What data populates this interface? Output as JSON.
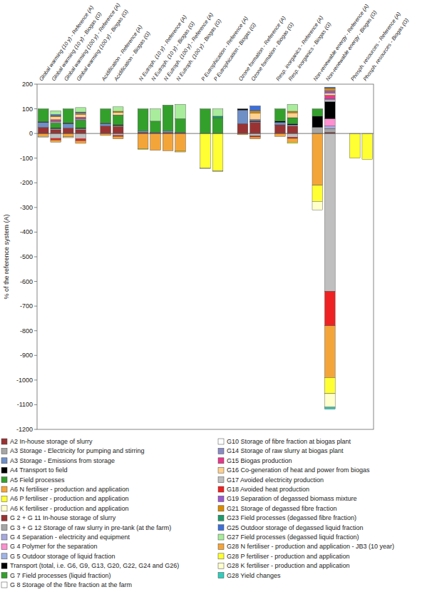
{
  "chart_data": {
    "type": "bar",
    "stacked": true,
    "grid": false,
    "legend": "bottom",
    "y_label": "% of the reference system (A)",
    "ylim": [
      -1200,
      200
    ],
    "yticks": [
      200,
      100,
      0,
      -100,
      -200,
      -300,
      -400,
      -500,
      -600,
      -700,
      -800,
      -900,
      -1000,
      -1100,
      -1200
    ],
    "categories": [
      "Global warming (10 y) - Reference (A)",
      "Global warming (10 y) - Biogas (G)",
      "Global warming (100 y) - Reference (A)",
      "Global warming (100 y) - Biogas (G)",
      null,
      "Acidification - Reference (A)",
      "Acidification - Biogas (G)",
      null,
      "N Eutroph. (10 y) - Reference (A)",
      "N Eutroph. (10 y) - Biogas (G)",
      "N Eutroph. (100 y) - Reference (A)",
      "N Eutroph. (100 y) - Biogas (G)",
      null,
      "P Eutrophication - Reference (A)",
      "P Eutrophication - Biogas (G)",
      null,
      "Ozone formation - Reference (A)",
      "Ozone formation - Biogas (G)",
      null,
      "Resp. inorganics - Reference (A)",
      "Resp. inorganics - Biogas (G)",
      null,
      "Non-renewable energy - Reference (A)",
      "Non-renewable energy - Biogas (G)",
      null,
      "Phosph. resources - Reference (A)",
      "Phosph. resources - Biogas (G)"
    ],
    "series": [
      {
        "name": "A2 In-house storage of slurry",
        "color": "#993333",
        "values": [
          25,
          null,
          22,
          null,
          null,
          30,
          null,
          null,
          5,
          null,
          4,
          null,
          null,
          null,
          null,
          null,
          40,
          null,
          null,
          35,
          null,
          null,
          null,
          null,
          null,
          null,
          null
        ]
      },
      {
        "name": "A3 Storage - Electricity for pumping and stirring",
        "color": "#a6a6a6",
        "values": [
          null,
          null,
          null,
          null,
          null,
          null,
          null,
          null,
          null,
          null,
          null,
          null,
          null,
          null,
          null,
          null,
          null,
          null,
          null,
          null,
          null,
          null,
          25,
          null,
          null,
          null,
          null
        ]
      },
      {
        "name": "A3 Storage - Emissions from storage",
        "color": "#6f8fc7",
        "values": [
          20,
          null,
          18,
          null,
          null,
          10,
          null,
          null,
          5,
          null,
          6,
          null,
          null,
          null,
          null,
          null,
          55,
          null,
          null,
          10,
          null,
          null,
          null,
          null,
          null,
          null,
          null
        ]
      },
      {
        "name": "A4 Transport to field",
        "color": "#000000",
        "values": [
          3,
          null,
          3,
          null,
          null,
          2,
          null,
          null,
          null,
          null,
          null,
          null,
          null,
          null,
          null,
          null,
          5,
          null,
          null,
          5,
          null,
          null,
          45,
          null,
          null,
          null,
          null
        ]
      },
      {
        "name": "A5 Field processes",
        "color": "#33a02c",
        "values": [
          52,
          null,
          57,
          null,
          null,
          58,
          null,
          null,
          90,
          null,
          105,
          null,
          null,
          100,
          null,
          null,
          null,
          null,
          null,
          50,
          null,
          null,
          30,
          null,
          null,
          null,
          null
        ]
      },
      {
        "name": "A6 N fertiliser - production and application",
        "color": "#f4a53a",
        "values": [
          -12,
          null,
          -14,
          null,
          null,
          -8,
          null,
          null,
          -62,
          null,
          -70,
          null,
          null,
          null,
          null,
          null,
          -5,
          null,
          null,
          -12,
          null,
          null,
          -210,
          null,
          null,
          null,
          null
        ]
      },
      {
        "name": "A6 P fertiliser - production and application",
        "color": "#ffff33",
        "values": [
          null,
          null,
          null,
          null,
          null,
          null,
          null,
          null,
          -3,
          null,
          null,
          null,
          null,
          -140,
          null,
          null,
          null,
          null,
          null,
          null,
          null,
          null,
          -65,
          null,
          null,
          -100,
          null
        ]
      },
      {
        "name": "A6 K fertiliser - production and application",
        "color": "#ffffcc",
        "values": [
          -3,
          null,
          -3,
          null,
          null,
          null,
          null,
          null,
          null,
          null,
          null,
          null,
          null,
          -3,
          null,
          null,
          null,
          null,
          null,
          null,
          null,
          null,
          -35,
          null,
          null,
          null,
          null
        ]
      },
      {
        "name": "G 2 + G 11 In-house storage of slurry",
        "color": "#993333",
        "values": [
          null,
          15,
          null,
          15,
          null,
          null,
          28,
          null,
          null,
          3,
          null,
          3,
          null,
          null,
          null,
          null,
          null,
          45,
          null,
          null,
          30,
          null,
          null,
          5,
          null,
          null,
          null
        ]
      },
      {
        "name": "G 3 + G 12 Storage of raw slurry in pre-tank (at the farm)",
        "color": "#a6a6a6",
        "values": [
          null,
          5,
          null,
          5,
          null,
          null,
          4,
          null,
          null,
          null,
          null,
          null,
          null,
          null,
          null,
          null,
          null,
          null,
          null,
          null,
          null,
          null,
          null,
          15,
          null,
          null,
          null
        ]
      },
      {
        "name": "G 4 Separation - electricity and equipment",
        "color": "#a9a9e0",
        "values": [
          null,
          null,
          null,
          null,
          null,
          null,
          null,
          null,
          null,
          null,
          null,
          null,
          null,
          null,
          null,
          null,
          null,
          null,
          null,
          null,
          null,
          null,
          null,
          10,
          null,
          null,
          null
        ]
      },
      {
        "name": "G 4 Polymer for the separation",
        "color": "#ff8fd0",
        "values": [
          null,
          null,
          null,
          null,
          null,
          null,
          null,
          null,
          null,
          null,
          null,
          null,
          null,
          null,
          null,
          null,
          null,
          null,
          null,
          null,
          null,
          null,
          null,
          30,
          null,
          null,
          null
        ]
      },
      {
        "name": "G 5 Outdoor storage of liquid fraction",
        "color": "#9fb3e6",
        "values": [
          null,
          null,
          null,
          null,
          null,
          null,
          null,
          null,
          null,
          2,
          null,
          2,
          null,
          null,
          null,
          null,
          null,
          3,
          null,
          null,
          5,
          null,
          null,
          null,
          null,
          null,
          null
        ]
      },
      {
        "name": "Transport (total, i.e. G6, G9, G13, G20, G22, G24 and G26)",
        "color": "#000000",
        "values": [
          null,
          3,
          null,
          3,
          null,
          null,
          3,
          null,
          null,
          null,
          null,
          null,
          null,
          null,
          null,
          null,
          null,
          4,
          null,
          null,
          4,
          null,
          null,
          70,
          null,
          null,
          null
        ]
      },
      {
        "name": "G 7 Field processes (liquid fraction)",
        "color": "#33a02c",
        "values": [
          null,
          20,
          null,
          30,
          null,
          null,
          40,
          null,
          null,
          45,
          null,
          55,
          null,
          null,
          62,
          null,
          null,
          null,
          null,
          null,
          25,
          null,
          null,
          null,
          null,
          null,
          null
        ]
      },
      {
        "name": "G 8 Storage of the fibre fraction at the farm",
        "color": "#ffffff",
        "values": [
          null,
          2,
          null,
          2,
          null,
          null,
          null,
          null,
          null,
          null,
          null,
          null,
          null,
          null,
          null,
          null,
          null,
          null,
          null,
          null,
          null,
          null,
          null,
          null,
          null,
          null,
          null
        ]
      },
      {
        "name": "G10 Storage of fibre fraction at biogas plant",
        "color": "#ffffff",
        "values": [
          null,
          3,
          null,
          3,
          null,
          null,
          null,
          null,
          null,
          null,
          null,
          null,
          null,
          null,
          null,
          null,
          null,
          null,
          null,
          null,
          null,
          null,
          null,
          5,
          null,
          null,
          null
        ]
      },
      {
        "name": "G14 Storage of raw slurry at biogas plant",
        "color": "#8b8bc4",
        "values": [
          null,
          3,
          null,
          3,
          null,
          null,
          null,
          null,
          null,
          null,
          null,
          null,
          null,
          null,
          null,
          null,
          null,
          5,
          null,
          null,
          null,
          null,
          null,
          5,
          null,
          null,
          null
        ]
      },
      {
        "name": "G15 Biogas production",
        "color": "#e8388a",
        "values": [
          null,
          5,
          null,
          5,
          null,
          null,
          null,
          null,
          null,
          null,
          null,
          null,
          null,
          null,
          null,
          null,
          null,
          null,
          null,
          null,
          null,
          null,
          null,
          15,
          null,
          null,
          null
        ]
      },
      {
        "name": "G16 Co-generation of heat and power from biogas",
        "color": "#ffd28f",
        "values": [
          null,
          12,
          null,
          12,
          null,
          null,
          10,
          null,
          null,
          null,
          null,
          null,
          null,
          null,
          null,
          null,
          null,
          25,
          null,
          null,
          20,
          null,
          null,
          8,
          null,
          null,
          null
        ]
      },
      {
        "name": "G17 Avoided electricity production",
        "color": "#bfbfbf",
        "values": [
          null,
          -20,
          null,
          -22,
          null,
          null,
          -8,
          null,
          null,
          null,
          null,
          null,
          null,
          null,
          null,
          null,
          null,
          -10,
          null,
          null,
          -15,
          null,
          null,
          -640,
          null,
          null,
          null
        ]
      },
      {
        "name": "G18 Avoided heat production",
        "color": "#ee2222",
        "values": [
          null,
          -7,
          null,
          -8,
          null,
          null,
          -4,
          null,
          null,
          null,
          null,
          null,
          null,
          null,
          null,
          null,
          null,
          -4,
          null,
          null,
          -5,
          null,
          null,
          -140,
          null,
          null,
          null
        ]
      },
      {
        "name": "G19 Separation of degassed biomass mixture",
        "color": "#9b59d0",
        "values": [
          null,
          null,
          null,
          null,
          null,
          null,
          null,
          null,
          null,
          null,
          null,
          null,
          null,
          null,
          null,
          null,
          null,
          null,
          null,
          null,
          null,
          null,
          null,
          10,
          null,
          null,
          null
        ]
      },
      {
        "name": "G21 Storage of degassed fibre fraction",
        "color": "#d98c00",
        "values": [
          null,
          4,
          null,
          4,
          null,
          null,
          5,
          null,
          null,
          null,
          null,
          null,
          null,
          null,
          null,
          null,
          null,
          10,
          null,
          null,
          6,
          null,
          null,
          10,
          null,
          null,
          null
        ]
      },
      {
        "name": "G23 Field processes (degassed fibre fraction)",
        "color": "#1f9a6a",
        "values": [
          null,
          null,
          null,
          null,
          null,
          null,
          null,
          null,
          null,
          null,
          null,
          null,
          null,
          null,
          8,
          null,
          null,
          null,
          null,
          null,
          null,
          null,
          null,
          null,
          null,
          null,
          null
        ]
      },
      {
        "name": "G25 Outdoor storage of degassed liquid fraction",
        "color": "#3d6fd6",
        "values": [
          null,
          5,
          null,
          5,
          null,
          null,
          null,
          null,
          null,
          null,
          null,
          null,
          null,
          null,
          null,
          null,
          null,
          20,
          null,
          null,
          null,
          null,
          null,
          5,
          null,
          null,
          null
        ]
      },
      {
        "name": "G27 Field processes (degassed liquid fraction)",
        "color": "#a8ec9c",
        "values": [
          null,
          15,
          null,
          18,
          null,
          null,
          18,
          null,
          null,
          50,
          null,
          58,
          null,
          null,
          30,
          null,
          null,
          null,
          null,
          null,
          28,
          null,
          null,
          null,
          null,
          null,
          null
        ]
      },
      {
        "name": "G28 N fertiliser - production and application - JB3 (10 year)",
        "color": "#f4a53a",
        "values": [
          null,
          -8,
          null,
          -10,
          null,
          null,
          -10,
          null,
          null,
          -68,
          null,
          -72,
          null,
          null,
          null,
          null,
          null,
          -8,
          null,
          null,
          -15,
          null,
          null,
          -210,
          null,
          null,
          null
        ]
      },
      {
        "name": "G28 P fertiliser - production and application",
        "color": "#ffff33",
        "values": [
          null,
          null,
          null,
          null,
          null,
          null,
          null,
          null,
          null,
          null,
          null,
          -3,
          null,
          null,
          -152,
          null,
          null,
          null,
          null,
          null,
          -5,
          null,
          null,
          -65,
          null,
          null,
          -105
        ]
      },
      {
        "name": "G28 K fertiliser - production and application",
        "color": "#ffffcc",
        "values": [
          null,
          null,
          null,
          null,
          null,
          null,
          null,
          null,
          null,
          null,
          null,
          null,
          null,
          null,
          -3,
          null,
          null,
          null,
          null,
          null,
          null,
          null,
          null,
          -55,
          null,
          null,
          null
        ]
      },
      {
        "name": "G28 Yield changes",
        "color": "#33ccbb",
        "values": [
          null,
          null,
          null,
          null,
          null,
          null,
          null,
          null,
          null,
          null,
          null,
          null,
          null,
          null,
          null,
          null,
          null,
          null,
          null,
          null,
          null,
          null,
          null,
          -8,
          null,
          null,
          null
        ]
      }
    ]
  }
}
